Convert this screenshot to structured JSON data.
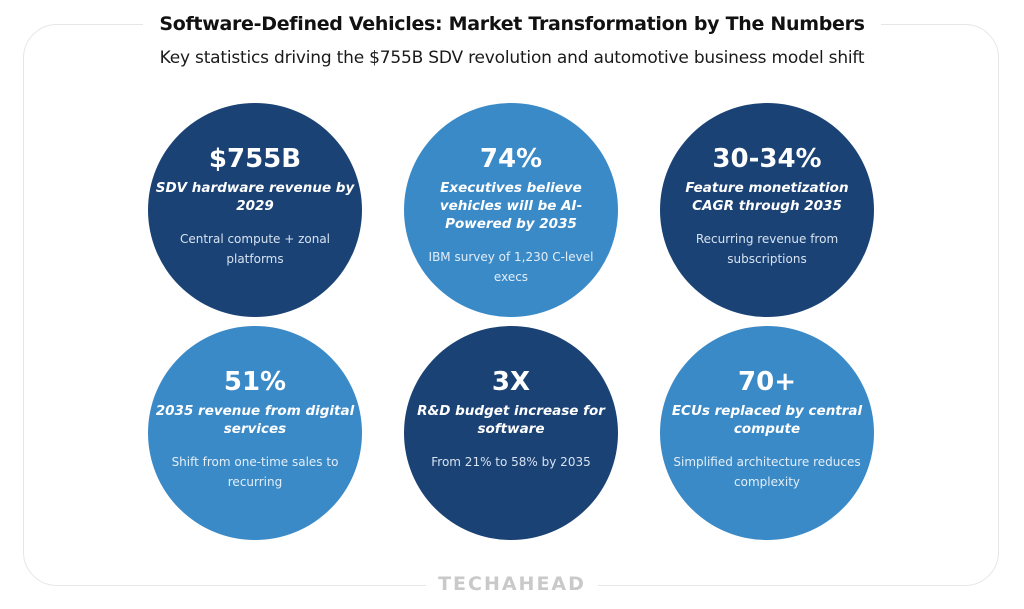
{
  "header": {
    "title": "Software-Defined Vehicles: Market Transformation by The Numbers",
    "subtitle": "Key statistics driving the $755B SDV revolution and automotive business model shift"
  },
  "colors": {
    "dark_blue": "#1b4275",
    "light_blue": "#3b8ac8",
    "title_text": "#111111",
    "brand_gray": "#c9c9c9"
  },
  "stats": [
    {
      "value": "$755B",
      "label": "SDV hardware revenue by 2029",
      "note": "Central compute + zonal platforms",
      "style": "dark"
    },
    {
      "value": "74%",
      "label": "Executives believe vehicles will be AI-Powered by 2035",
      "note": "IBM survey of 1,230 C-level execs",
      "style": "light"
    },
    {
      "value": "30-34%",
      "label": "Feature monetization CAGR through 2035",
      "note": "Recurring revenue from subscriptions",
      "style": "dark"
    },
    {
      "value": "51%",
      "label": "2035 revenue from digital services",
      "note": "Shift from one-time sales to recurring",
      "style": "light"
    },
    {
      "value": "3X",
      "label": "R&D budget increase for software",
      "note": "From 21% to 58% by 2035",
      "style": "dark"
    },
    {
      "value": "70+",
      "label": "ECUs replaced by central compute",
      "note": "Simplified architecture reduces complexity",
      "style": "light"
    }
  ],
  "footer": {
    "brand": "TECHAHEAD"
  }
}
